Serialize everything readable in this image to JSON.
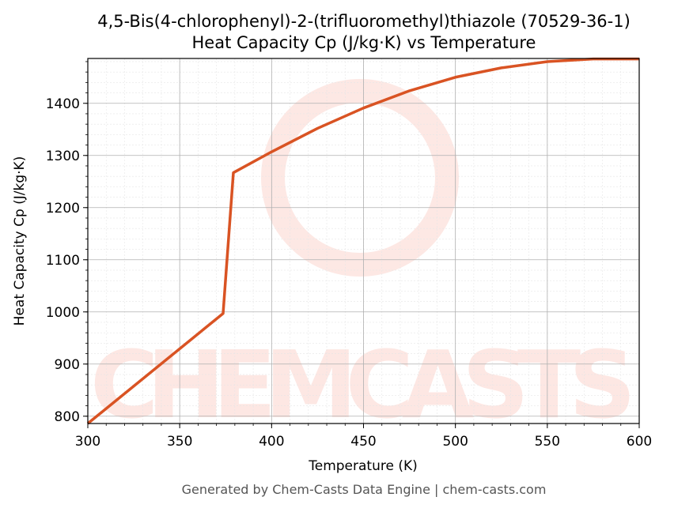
{
  "chart_data": {
    "type": "line",
    "title": "4,5-Bis(4-chlorophenyl)-2-(trifluoromethyl)thiazole (70529-36-1)",
    "subtitle": "Heat Capacity Cp (J/kg·K) vs Temperature",
    "x_label": "Temperature (K)",
    "y_label": "Heat Capacity Cp (J/kg·K)",
    "footer": "Generated by Chem-Casts Data Engine | chem-casts.com",
    "watermark": "CHEMCASTS",
    "x": [
      300,
      373.6,
      379.2,
      400,
      425,
      450,
      475,
      500,
      525,
      550,
      575,
      600
    ],
    "series": [
      {
        "name": "Cp",
        "color": "#d95323",
        "values": [
          786,
          997,
          1267,
          1307,
          1352,
          1391,
          1424,
          1450,
          1468,
          1480,
          1485,
          1485
        ]
      }
    ],
    "xlim": [
      300,
      600
    ],
    "xticks": [
      300,
      350,
      400,
      450,
      500,
      550,
      600
    ],
    "ylim": [
      786,
      1486
    ],
    "yticks": [
      800,
      900,
      1000,
      1100,
      1200,
      1300,
      1400
    ],
    "grid": true
  }
}
